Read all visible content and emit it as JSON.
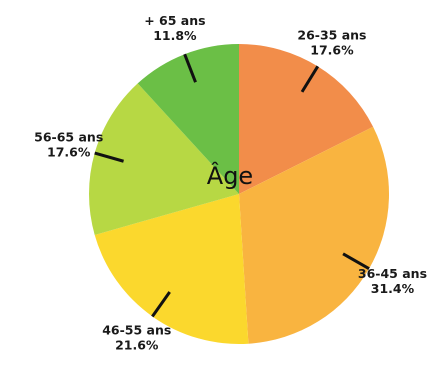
{
  "chart_data": {
    "type": "pie",
    "center_label": "Âge",
    "start": "top, clockwise",
    "slices": [
      {
        "label": "26-35 ans",
        "value": 17.6,
        "value_label": "17.6%",
        "color": "#f28d4a"
      },
      {
        "label": "36-45 ans",
        "value": 31.4,
        "value_label": "31.4%",
        "color": "#f9b440"
      },
      {
        "label": "46-55 ans",
        "value": 21.6,
        "value_label": "21.6%",
        "color": "#fbd82d"
      },
      {
        "label": "56-65 ans",
        "value": 17.6,
        "value_label": "17.6%",
        "color": "#b7d844"
      },
      {
        "label": "+ 65 ans",
        "value": 11.8,
        "value_label": "11.8%",
        "color": "#6bbf46"
      }
    ]
  }
}
